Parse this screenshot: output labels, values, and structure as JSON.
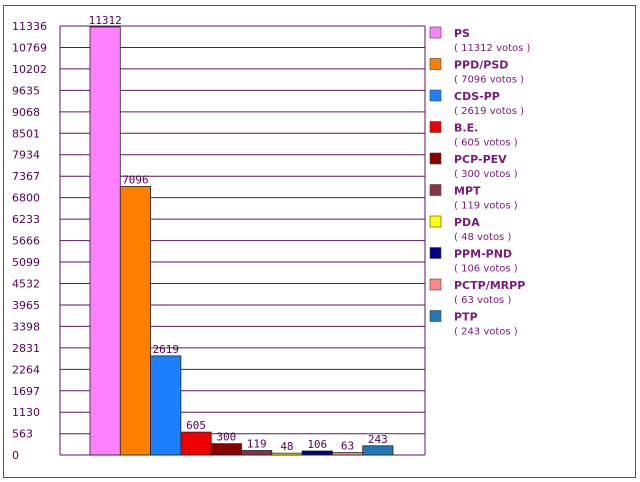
{
  "chart_data": {
    "type": "bar",
    "yticks": [
      "11336",
      "10769",
      "10202",
      "9635",
      "9068",
      "8501",
      "7934",
      "7367",
      "6800",
      "6233",
      "5666",
      "5099",
      "4532",
      "3965",
      "3398",
      "2831",
      "2264",
      "1697",
      "1130",
      "563",
      "0"
    ],
    "ylim": [
      0,
      11336
    ],
    "grid": true,
    "legend_position": "right",
    "series": [
      {
        "name": "PS",
        "value": 11312,
        "label": "11312",
        "votes": "( 11312 votos )",
        "color": "#ff80ff"
      },
      {
        "name": "PPD/PSD",
        "value": 7096,
        "label": "7096",
        "votes": "( 7096 votos )",
        "color": "#ff8000"
      },
      {
        "name": "CDS-PP",
        "value": 2619,
        "label": "2619",
        "votes": "( 2619 votos )",
        "color": "#1a80ff"
      },
      {
        "name": "B.E.",
        "value": 605,
        "label": "605",
        "votes": "( 605 votos )",
        "color": "#ee0000"
      },
      {
        "name": "PCP-PEV",
        "value": 300,
        "label": "300",
        "votes": "( 300 votos )",
        "color": "#880000"
      },
      {
        "name": "MPT",
        "value": 119,
        "label": "119",
        "votes": "( 119 votos )",
        "color": "#883344"
      },
      {
        "name": "PDA",
        "value": 48,
        "label": "48",
        "votes": "( 48 votos )",
        "color": "#ffff00"
      },
      {
        "name": "PPM-PND",
        "value": 106,
        "label": "106",
        "votes": "( 106 votos )",
        "color": "#000088"
      },
      {
        "name": "PCTP/MRPP",
        "value": 63,
        "label": "63",
        "votes": "( 63 votos )",
        "color": "#ff8888"
      },
      {
        "name": "PTP",
        "value": 243,
        "label": "243",
        "votes": "( 243 votos )",
        "color": "#2277bb"
      }
    ]
  }
}
